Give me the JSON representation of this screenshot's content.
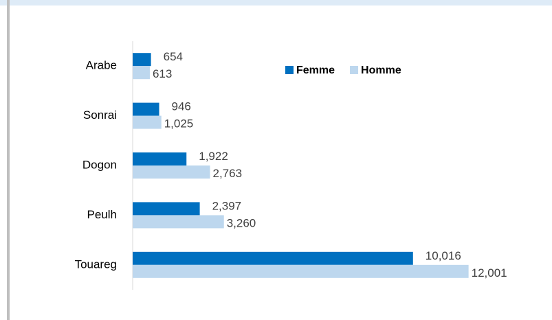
{
  "chart_data": {
    "type": "hbar",
    "categories": [
      "Arabe",
      "Sonrai",
      "Dogon",
      "Peulh",
      "Touareg"
    ],
    "series": [
      {
        "name": "Femme",
        "color": "#0070c0",
        "values": [
          654,
          946,
          1922,
          2397,
          10016
        ],
        "value_labels": [
          "654",
          "946",
          "1,922",
          "2,397",
          "10,016"
        ]
      },
      {
        "name": "Homme",
        "color": "#bdd7ee",
        "values": [
          613,
          1025,
          2763,
          3260,
          12001
        ],
        "value_labels": [
          "613",
          "1,025",
          "2,763",
          "3,260",
          "12,001"
        ]
      }
    ],
    "xlim": [
      0,
      14000
    ],
    "legend": "top-right"
  }
}
